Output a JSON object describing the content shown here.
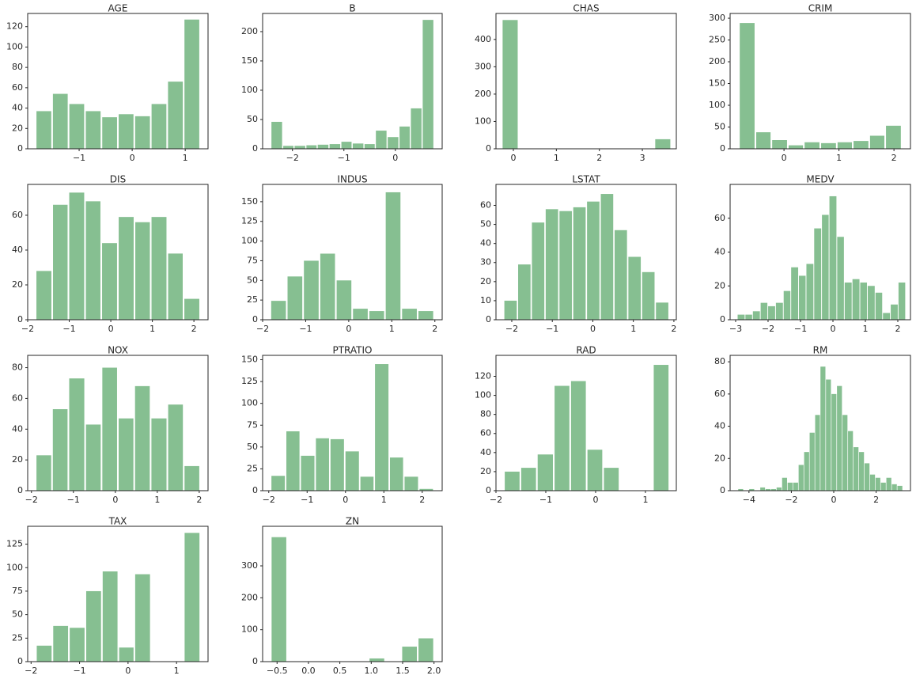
{
  "chart_data": [
    {
      "type": "histogram",
      "title": "AGE",
      "color": "#86bf91",
      "bins": [
        -1.82,
        -1.51,
        -1.2,
        -0.89,
        -0.58,
        -0.27,
        0.04,
        0.35,
        0.66,
        0.97,
        1.28
      ],
      "values": [
        37,
        54,
        44,
        37,
        31,
        34,
        32,
        44,
        66,
        127
      ],
      "xlim": [
        -1.97,
        1.43
      ],
      "xticks": [
        {
          "value": -1,
          "label": "−1"
        },
        0,
        1
      ],
      "ylim": [
        0,
        133
      ],
      "yticks": [
        0,
        20,
        40,
        60,
        80,
        100,
        120
      ]
    },
    {
      "type": "histogram",
      "title": "B",
      "color": "#86bf91",
      "bins": [
        -2.42,
        -2.19,
        -1.97,
        -1.74,
        -1.52,
        -1.29,
        -1.06,
        -0.84,
        -0.61,
        -0.39,
        -0.16,
        0.07,
        0.29,
        0.52,
        0.75
      ],
      "values": [
        46,
        5,
        5,
        6,
        7,
        8,
        12,
        9,
        8,
        31,
        20,
        38,
        69,
        220
      ],
      "xlim": [
        -2.58,
        0.91
      ],
      "xticks": [
        {
          "value": -2,
          "label": "−2"
        },
        {
          "value": -1,
          "label": "−1"
        },
        0
      ],
      "ylim": [
        0,
        231
      ],
      "yticks": [
        0,
        50,
        100,
        150,
        200
      ]
    },
    {
      "type": "histogram",
      "title": "CHAS",
      "color": "#86bf91",
      "bins": [
        -0.27,
        0.12,
        0.52,
        0.91,
        1.31,
        1.7,
        2.09,
        2.49,
        2.88,
        3.28,
        3.67
      ],
      "values": [
        471,
        0,
        0,
        0,
        0,
        0,
        0,
        0,
        0,
        35
      ],
      "xlim": [
        -0.405,
        3.79
      ],
      "xticks": [
        0,
        1,
        2,
        3
      ],
      "ylim": [
        0,
        495
      ],
      "yticks": [
        0,
        100,
        200,
        300,
        400
      ]
    },
    {
      "type": "histogram",
      "title": "CRIM",
      "color": "#86bf91",
      "bins": [
        -0.82,
        -0.52,
        -0.23,
        0.07,
        0.36,
        0.66,
        0.96,
        1.25,
        1.55,
        1.84,
        2.14
      ],
      "values": [
        289,
        38,
        20,
        8,
        15,
        13,
        15,
        18,
        30,
        53
      ],
      "xlim": [
        -0.98,
        2.3
      ],
      "xticks": [
        0,
        1,
        2
      ],
      "ylim": [
        0,
        311
      ],
      "yticks": [
        0,
        50,
        100,
        150,
        200,
        250,
        300
      ]
    },
    {
      "type": "histogram",
      "title": "DIS",
      "color": "#86bf91",
      "bins": [
        -1.81,
        -1.41,
        -1.02,
        -0.62,
        -0.23,
        0.17,
        0.57,
        0.96,
        1.36,
        1.75,
        2.15
      ],
      "values": [
        28,
        66,
        73,
        68,
        44,
        59,
        56,
        59,
        38,
        12
      ],
      "xlim": [
        -2,
        2.34
      ],
      "xticks": [
        {
          "value": -2,
          "label": "−2"
        },
        {
          "value": -1,
          "label": "−1"
        },
        0,
        1,
        2
      ],
      "ylim": [
        0,
        77.7
      ],
      "yticks": [
        0,
        20,
        40,
        60
      ]
    },
    {
      "type": "histogram",
      "title": "INDUS",
      "color": "#86bf91",
      "bins": [
        -1.82,
        -1.44,
        -1.06,
        -0.68,
        -0.3,
        0.08,
        0.46,
        0.84,
        1.22,
        1.6,
        1.98
      ],
      "values": [
        24,
        55,
        75,
        84,
        50,
        14,
        11,
        162,
        14,
        11
      ],
      "xlim": [
        -2,
        2.17
      ],
      "xticks": [
        {
          "value": -2,
          "label": "−2"
        },
        {
          "value": -1,
          "label": "−1"
        },
        0,
        1,
        2
      ],
      "ylim": [
        0,
        172
      ],
      "yticks": [
        0,
        25,
        50,
        75,
        100,
        125,
        150
      ]
    },
    {
      "type": "histogram",
      "title": "LSTAT",
      "color": "#86bf91",
      "bins": [
        -2.2,
        -1.86,
        -1.52,
        -1.18,
        -0.84,
        -0.5,
        -0.16,
        0.18,
        0.52,
        0.86,
        1.2,
        1.54,
        1.88
      ],
      "values": [
        10,
        29,
        51,
        58,
        57,
        59,
        62,
        66,
        47,
        33,
        25,
        9
      ],
      "xlim": [
        -2.39,
        2.06
      ],
      "xticks": [
        {
          "value": -2,
          "label": "−2"
        },
        {
          "value": -1,
          "label": "−1"
        },
        0,
        1,
        2
      ],
      "ylim": [
        0,
        71
      ],
      "yticks": [
        0,
        10,
        20,
        30,
        40,
        50,
        60
      ]
    },
    {
      "type": "histogram",
      "title": "MEDV",
      "color": "#86bf91",
      "bins": [
        -2.95,
        -2.71,
        -2.48,
        -2.24,
        -2.01,
        -1.77,
        -1.53,
        -1.3,
        -1.06,
        -0.83,
        -0.59,
        -0.35,
        -0.12,
        0.12,
        0.35,
        0.59,
        0.83,
        1.06,
        1.3,
        1.53,
        1.77,
        2.01,
        2.24
      ],
      "values": [
        3,
        3,
        5,
        10,
        8,
        10,
        17,
        31,
        26,
        33,
        54,
        62,
        73,
        49,
        22,
        24,
        22,
        20,
        16,
        4,
        9,
        22
      ],
      "xlim": [
        -3.17,
        2.39
      ],
      "xticks": [
        {
          "value": -3,
          "label": "−3"
        },
        {
          "value": -2,
          "label": "−2"
        },
        {
          "value": -1,
          "label": "−1"
        },
        0,
        1,
        2
      ],
      "ylim": [
        0,
        80
      ],
      "yticks": [
        0,
        20,
        40,
        60
      ]
    },
    {
      "type": "histogram",
      "title": "NOX",
      "color": "#86bf91",
      "bins": [
        -1.9,
        -1.51,
        -1.12,
        -0.72,
        -0.33,
        0.06,
        0.45,
        0.84,
        1.24,
        1.63,
        2.02
      ],
      "values": [
        23,
        53,
        73,
        43,
        80,
        47,
        68,
        47,
        56,
        16
      ],
      "xlim": [
        -2.09,
        2.21
      ],
      "xticks": [
        {
          "value": -2,
          "label": "−2"
        },
        {
          "value": -1,
          "label": "−1"
        },
        0,
        1,
        2
      ],
      "ylim": [
        0,
        88
      ],
      "yticks": [
        0,
        20,
        40,
        60,
        80
      ]
    },
    {
      "type": "histogram",
      "title": "PTRATIO",
      "color": "#86bf91",
      "bins": [
        -1.95,
        -1.56,
        -1.18,
        -0.79,
        -0.41,
        -0.02,
        0.37,
        0.75,
        1.14,
        1.52,
        1.91,
        2.3
      ],
      "values": [
        17,
        68,
        40,
        60,
        59,
        45,
        16,
        145,
        38,
        16,
        2
      ],
      "xlim": [
        -2.16,
        2.52
      ],
      "xticks": [
        {
          "value": -2,
          "label": "−2"
        },
        {
          "value": -1,
          "label": "−1"
        },
        0,
        1,
        2
      ],
      "ylim": [
        0,
        155
      ],
      "yticks": [
        0,
        25,
        50,
        75,
        100,
        125,
        150
      ]
    },
    {
      "type": "histogram",
      "title": "RAD",
      "color": "#86bf91",
      "bins": [
        -1.84,
        -1.51,
        -1.18,
        -0.84,
        -0.51,
        -0.18,
        0.15,
        0.48,
        0.82,
        1.15,
        1.48
      ],
      "values": [
        20,
        24,
        38,
        110,
        115,
        43,
        24,
        0,
        0,
        132
      ],
      "xlim": [
        -2,
        1.62
      ],
      "xticks": [
        {
          "value": -2,
          "label": "−2"
        },
        {
          "value": -1,
          "label": "−1"
        },
        0,
        1
      ],
      "ylim": [
        0,
        142
      ],
      "yticks": [
        0,
        20,
        40,
        60,
        80,
        100,
        120
      ]
    },
    {
      "type": "histogram",
      "title": "RM",
      "color": "#86bf91",
      "bins": [
        -4.52,
        -4.26,
        -4.0,
        -3.74,
        -3.48,
        -3.23,
        -2.97,
        -2.71,
        -2.45,
        -2.19,
        -1.93,
        -1.67,
        -1.41,
        -1.15,
        -0.89,
        -0.64,
        -0.38,
        -0.12,
        0.14,
        0.4,
        0.66,
        0.92,
        1.18,
        1.44,
        1.7,
        1.96,
        2.21,
        2.47,
        2.73,
        2.99,
        3.25
      ],
      "values": [
        1,
        0,
        1,
        0,
        2,
        1,
        1,
        2,
        8,
        5,
        5,
        16,
        24,
        36,
        47,
        77,
        69,
        60,
        65,
        47,
        37,
        27,
        24,
        17,
        10,
        8,
        5,
        8,
        4,
        3
      ],
      "xlim": [
        -4.89,
        3.62
      ],
      "xticks": [
        {
          "value": -4,
          "label": "−4"
        },
        {
          "value": -2,
          "label": "−2"
        },
        0,
        2
      ],
      "ylim": [
        0,
        84
      ],
      "yticks": [
        0,
        20,
        40,
        60,
        80
      ]
    },
    {
      "type": "histogram",
      "title": "TAX",
      "color": "#86bf91",
      "bins": [
        -1.9,
        -1.56,
        -1.22,
        -0.88,
        -0.54,
        -0.2,
        0.13,
        0.47,
        0.81,
        1.15,
        1.49
      ],
      "values": [
        17,
        38,
        36,
        75,
        96,
        15,
        93,
        0,
        0,
        137
      ],
      "xlim": [
        -2.07,
        1.65
      ],
      "xticks": [
        {
          "value": -2,
          "label": "−2"
        },
        {
          "value": -1,
          "label": "−1"
        },
        0,
        1
      ],
      "ylim": [
        0,
        144
      ],
      "yticks": [
        0,
        25,
        50,
        75,
        100,
        125
      ]
    },
    {
      "type": "histogram",
      "title": "ZN",
      "color": "#86bf91",
      "bins": [
        -0.6,
        -0.34,
        -0.08,
        0.18,
        0.44,
        0.7,
        0.96,
        1.22,
        1.48,
        1.74,
        2.0
      ],
      "values": [
        390,
        0,
        0,
        0,
        0,
        0,
        10,
        0,
        47,
        73
      ],
      "xlim": [
        -0.73,
        2.13
      ],
      "xticks": [
        {
          "value": -0.5,
          "label": "−0.5"
        },
        {
          "value": 0,
          "label": "0.0"
        },
        {
          "value": 0.5,
          "label": "0.5"
        },
        {
          "value": 1,
          "label": "1.0"
        },
        1.5,
        {
          "value": 2,
          "label": "2.0"
        }
      ],
      "ylim": [
        0,
        424
      ],
      "yticks": [
        0,
        100,
        200,
        300
      ]
    }
  ]
}
